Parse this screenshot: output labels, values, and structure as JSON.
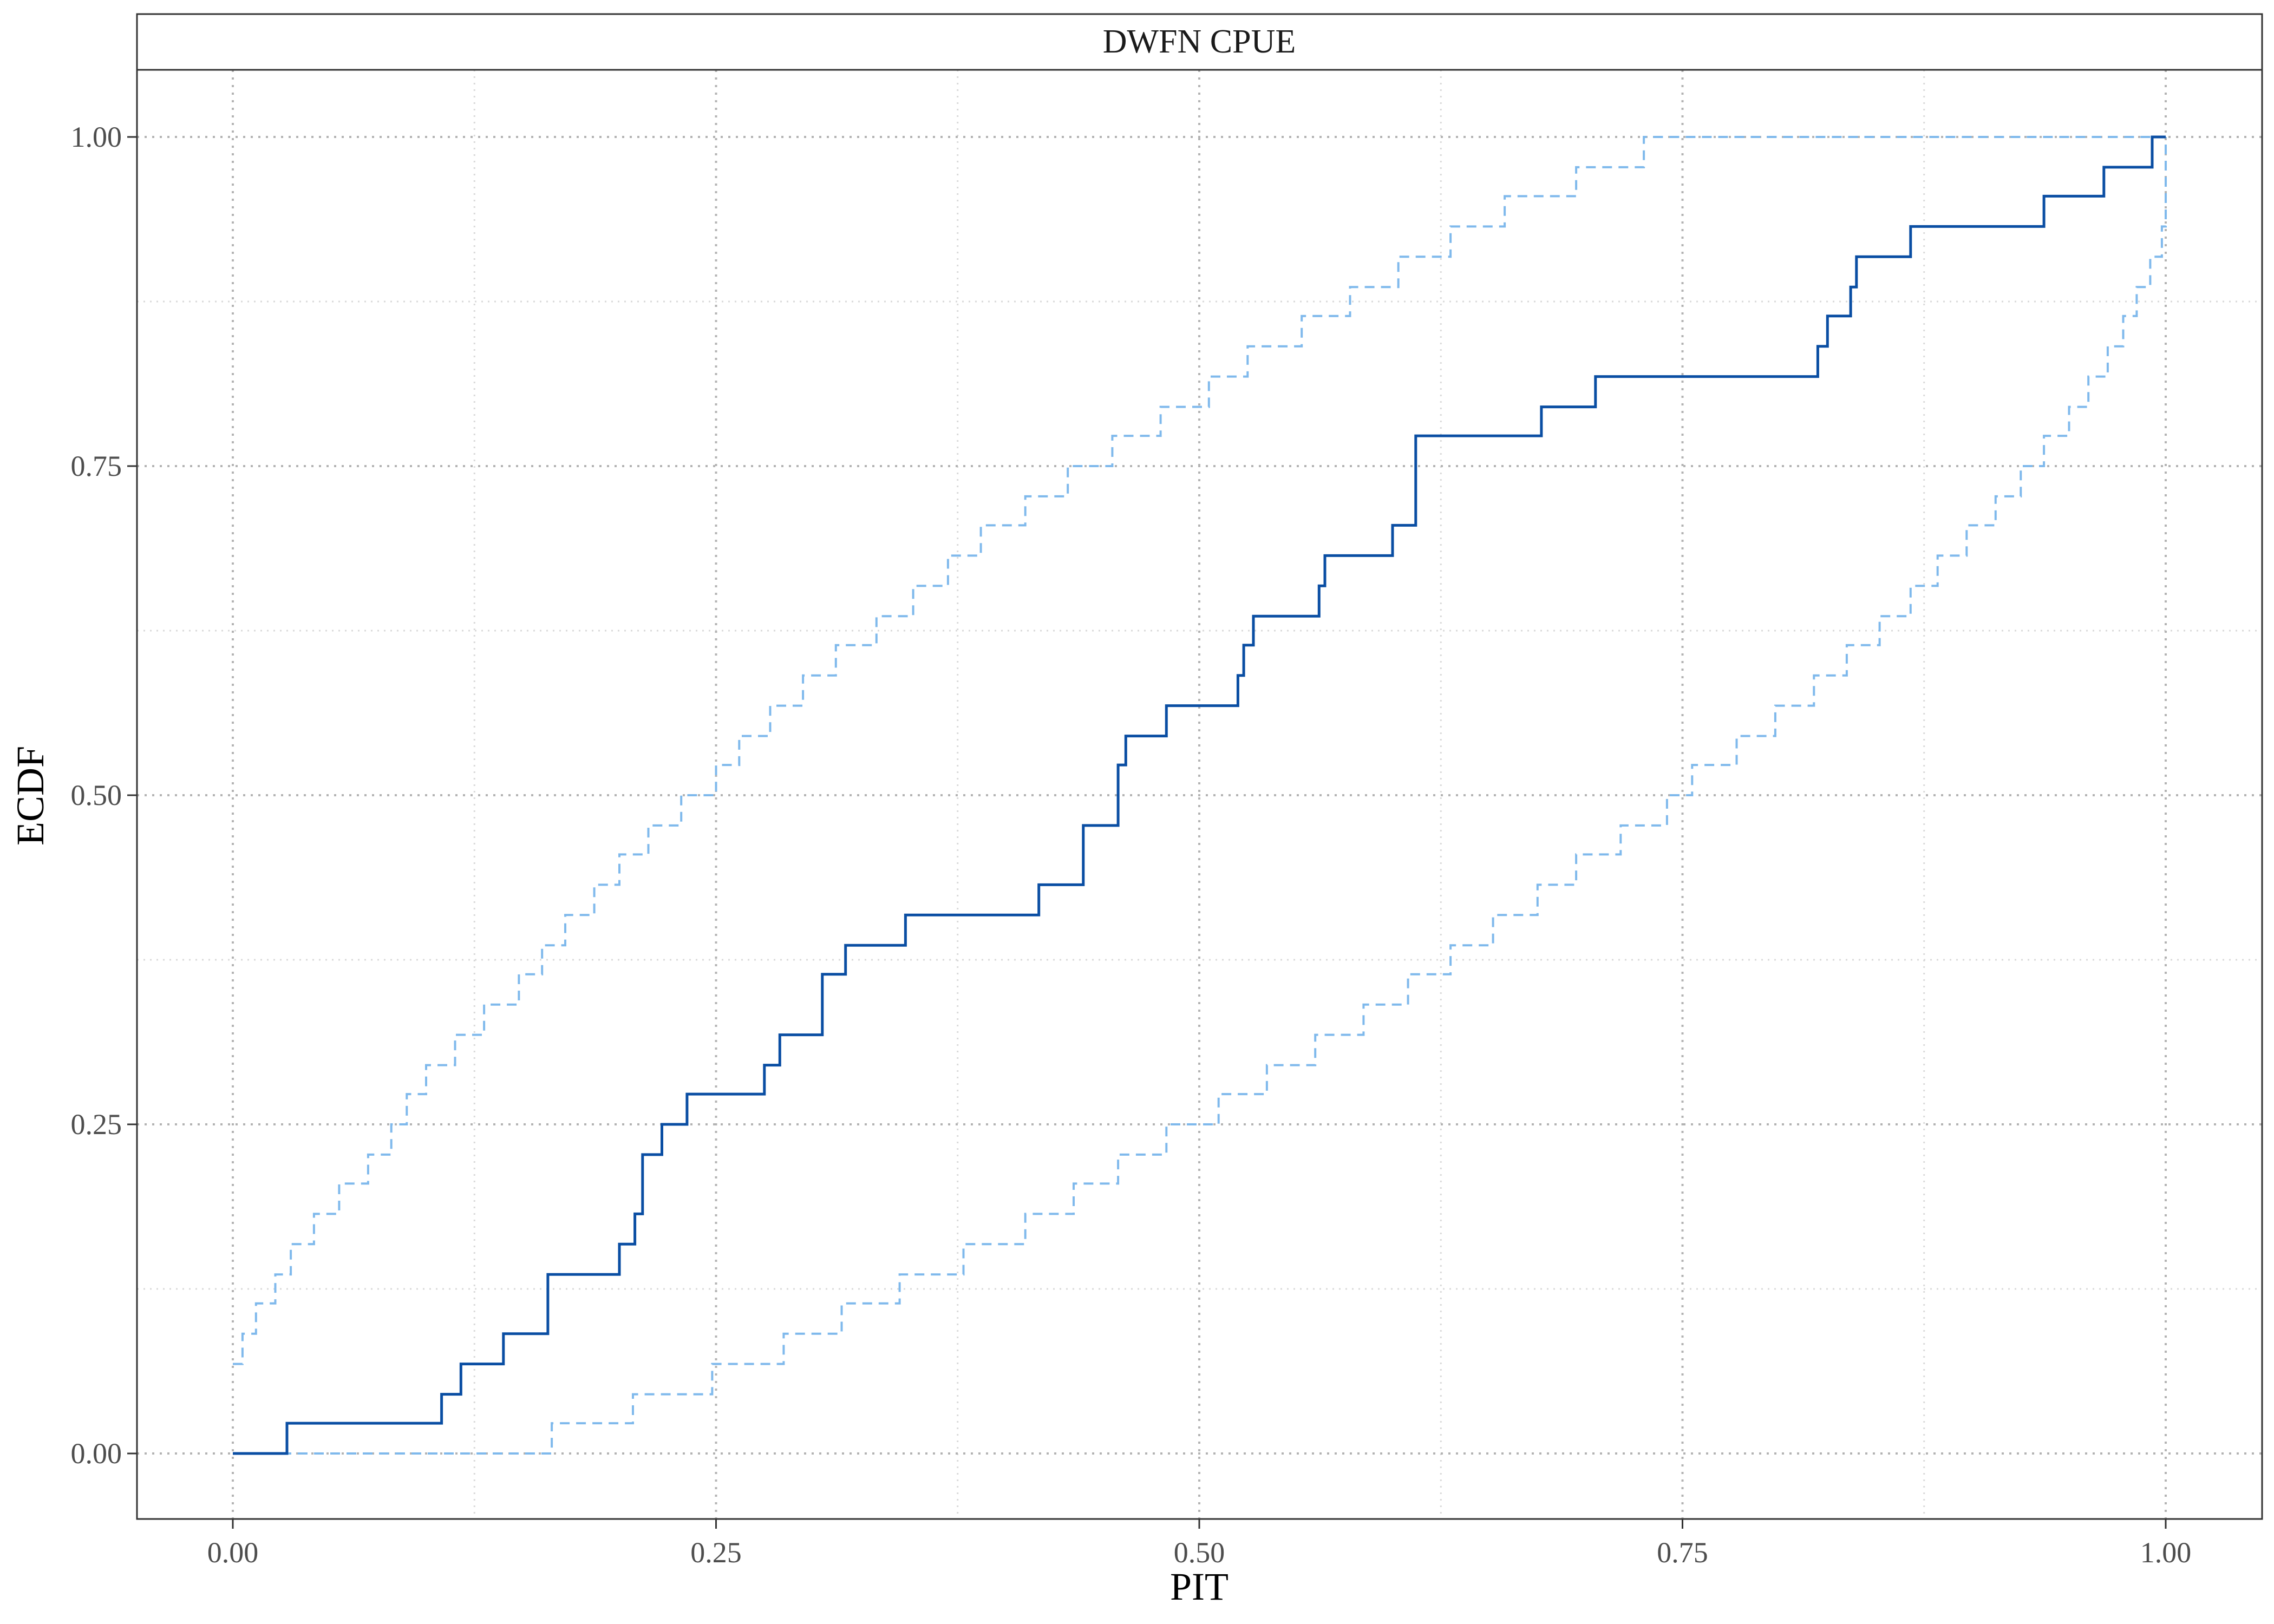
{
  "chart_data": {
    "type": "line",
    "title": "DWFN CPUE",
    "xlabel": "PIT",
    "ylabel": "ECDF",
    "xlim": [
      0,
      1
    ],
    "ylim": [
      0,
      1
    ],
    "x_ticks": [
      "0.00",
      "0.25",
      "0.50",
      "0.75",
      "1.00"
    ],
    "y_ticks": [
      "0.00",
      "0.25",
      "0.50",
      "0.75",
      "1.00"
    ],
    "grid": true,
    "legend": "none",
    "colors": {
      "ecdf": "#0a4ea3",
      "bands": "#7fb9ec",
      "grid_major": "#b3b3b3",
      "grid_minor": "#d9d9d9"
    },
    "series": [
      {
        "style": "solid",
        "step": "post",
        "x": [
          0.0,
          0.028,
          0.108,
          0.118,
          0.14,
          0.163,
          0.2,
          0.208,
          0.212,
          0.222,
          0.235,
          0.275,
          0.283,
          0.305,
          0.317,
          0.348,
          0.417,
          0.44,
          0.458,
          0.462,
          0.483,
          0.52,
          0.523,
          0.528,
          0.562,
          0.565,
          0.6,
          0.612,
          0.677,
          0.705,
          0.82,
          0.822,
          0.825,
          0.837,
          0.84,
          0.868,
          0.937,
          0.968,
          0.993,
          1.0
        ],
        "y": [
          0.0,
          0.023,
          0.045,
          0.068,
          0.091,
          0.136,
          0.159,
          0.182,
          0.227,
          0.25,
          0.273,
          0.295,
          0.318,
          0.364,
          0.386,
          0.409,
          0.432,
          0.477,
          0.523,
          0.545,
          0.568,
          0.591,
          0.614,
          0.636,
          0.659,
          0.682,
          0.705,
          0.773,
          0.795,
          0.818,
          0.841,
          0.841,
          0.864,
          0.886,
          0.909,
          0.932,
          0.955,
          0.977,
          1.0,
          1.0
        ]
      },
      {
        "style": "dashed",
        "step": "post",
        "x": [
          0.0,
          0.005,
          0.012,
          0.022,
          0.03,
          0.042,
          0.055,
          0.07,
          0.082,
          0.09,
          0.1,
          0.115,
          0.13,
          0.148,
          0.16,
          0.172,
          0.187,
          0.2,
          0.215,
          0.232,
          0.25,
          0.262,
          0.278,
          0.295,
          0.312,
          0.333,
          0.352,
          0.37,
          0.387,
          0.41,
          0.432,
          0.455,
          0.48,
          0.505,
          0.525,
          0.553,
          0.578,
          0.603,
          0.63,
          0.658,
          0.695,
          0.73,
          0.758,
          0.795,
          0.84,
          1.0
        ],
        "y": [
          0.068,
          0.091,
          0.114,
          0.136,
          0.159,
          0.182,
          0.205,
          0.227,
          0.25,
          0.273,
          0.295,
          0.318,
          0.341,
          0.364,
          0.386,
          0.409,
          0.432,
          0.455,
          0.477,
          0.5,
          0.523,
          0.545,
          0.568,
          0.591,
          0.614,
          0.636,
          0.659,
          0.682,
          0.705,
          0.727,
          0.75,
          0.773,
          0.795,
          0.818,
          0.841,
          0.864,
          0.886,
          0.909,
          0.932,
          0.955,
          0.977,
          1.0,
          1.0,
          1.0,
          1.0,
          1.0
        ]
      },
      {
        "style": "dashed",
        "step": "post",
        "x": [
          0.0,
          0.165,
          0.207,
          0.248,
          0.285,
          0.315,
          0.345,
          0.378,
          0.41,
          0.435,
          0.458,
          0.483,
          0.51,
          0.535,
          0.56,
          0.585,
          0.608,
          0.63,
          0.652,
          0.675,
          0.695,
          0.718,
          0.742,
          0.755,
          0.778,
          0.798,
          0.818,
          0.835,
          0.852,
          0.868,
          0.882,
          0.897,
          0.912,
          0.925,
          0.937,
          0.95,
          0.96,
          0.97,
          0.978,
          0.985,
          0.992,
          0.998,
          1.0
        ],
        "y": [
          0.0,
          0.023,
          0.045,
          0.068,
          0.091,
          0.114,
          0.136,
          0.159,
          0.182,
          0.205,
          0.227,
          0.25,
          0.273,
          0.295,
          0.318,
          0.341,
          0.364,
          0.386,
          0.409,
          0.432,
          0.455,
          0.477,
          0.5,
          0.523,
          0.545,
          0.568,
          0.591,
          0.614,
          0.636,
          0.659,
          0.682,
          0.705,
          0.727,
          0.75,
          0.773,
          0.795,
          0.818,
          0.841,
          0.864,
          0.886,
          0.909,
          0.932,
          1.0
        ]
      }
    ]
  }
}
